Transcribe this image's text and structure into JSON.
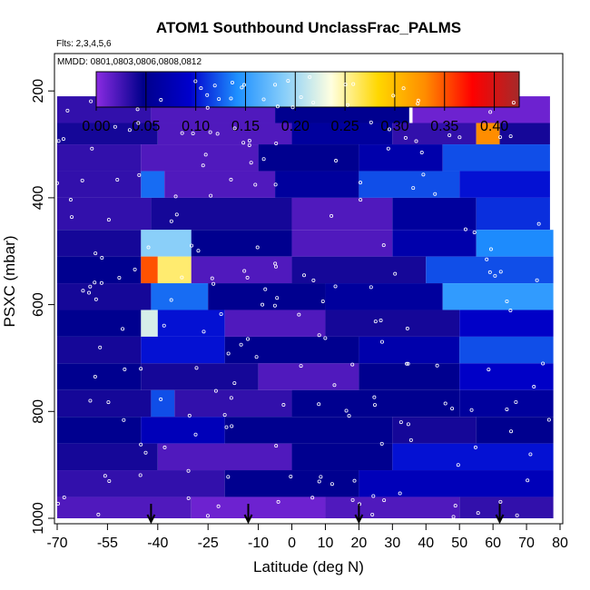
{
  "chart_data": {
    "type": "heatmap",
    "title": "ATOM1 Southbound UnclassFrac_PALMS",
    "subtitle": "Flts: 2,3,4,5,6",
    "annotation": "MMDD: 0801,0803,0806,0808,0812",
    "xlabel": "Latitude (deg N)",
    "ylabel": "PSXC (mbar)",
    "xlim": [
      -70,
      80
    ],
    "ylim": [
      1000,
      130
    ],
    "x_ticks": [
      -70,
      -55,
      -40,
      -25,
      -10,
      0,
      10,
      20,
      30,
      40,
      50,
      60,
      70,
      80
    ],
    "x_tick_labels": [
      "-70",
      "-55",
      "-40",
      "-25",
      "-10",
      "0",
      "10",
      "20",
      "30",
      "40",
      "50",
      "60",
      "70",
      "80"
    ],
    "y_ticks": [
      200,
      400,
      600,
      800,
      1000
    ],
    "y_tick_labels": [
      "200",
      "400",
      "600",
      "800",
      "1000"
    ],
    "colorbar": {
      "range": [
        0.0,
        0.425
      ],
      "ticks": [
        0.0,
        0.05,
        0.1,
        0.15,
        0.2,
        0.25,
        0.3,
        0.35,
        0.4
      ],
      "tick_labels": [
        "0.00",
        "0.05",
        "0.10",
        "0.15",
        "0.20",
        "0.25",
        "0.30",
        "0.35",
        "0.40"
      ],
      "colors": [
        "#8a2be2",
        "#00008b",
        "#0000cd",
        "#1e90ff",
        "#87cefa",
        "#ffffe0",
        "#ffd700",
        "#ff8c00",
        "#ff0000",
        "#a52a2a"
      ]
    },
    "arrow_latitudes": [
      -42,
      -13,
      20,
      62
    ],
    "pressure_bands": [
      {
        "p_top": 170,
        "p_bot": 210,
        "segments": [
          [
            -43,
            35,
            0.05
          ]
        ]
      },
      {
        "p_top": 210,
        "p_bot": 260,
        "segments": [
          [
            -70,
            -42,
            0.03
          ],
          [
            -42,
            -5,
            0.02
          ],
          [
            -5,
            35,
            0.05
          ],
          [
            36,
            77,
            0.01
          ]
        ]
      },
      {
        "p_top": 260,
        "p_bot": 300,
        "segments": [
          [
            -70,
            -40,
            0.04
          ],
          [
            -40,
            0,
            0.02
          ],
          [
            0,
            30,
            0.06
          ],
          [
            30,
            55,
            0.03
          ],
          [
            55,
            62,
            0.33
          ],
          [
            62,
            77,
            0.04
          ]
        ]
      },
      {
        "p_top": 300,
        "p_bot": 350,
        "segments": [
          [
            -70,
            -45,
            0.03
          ],
          [
            -45,
            -10,
            0.02
          ],
          [
            -10,
            20,
            0.05
          ],
          [
            20,
            45,
            0.07
          ],
          [
            45,
            77,
            0.12
          ]
        ]
      },
      {
        "p_top": 350,
        "p_bot": 400,
        "segments": [
          [
            -70,
            -45,
            0.03
          ],
          [
            -45,
            -38,
            0.13
          ],
          [
            -38,
            -5,
            0.02
          ],
          [
            -5,
            20,
            0.06
          ],
          [
            20,
            50,
            0.12
          ],
          [
            50,
            77,
            0.1
          ]
        ]
      },
      {
        "p_top": 400,
        "p_bot": 460,
        "segments": [
          [
            -70,
            -42,
            0.03
          ],
          [
            -42,
            0,
            0.04
          ],
          [
            0,
            30,
            0.02
          ],
          [
            30,
            55,
            0.06
          ],
          [
            55,
            77,
            0.11
          ]
        ]
      },
      {
        "p_top": 460,
        "p_bot": 510,
        "segments": [
          [
            -70,
            -45,
            0.04
          ],
          [
            -45,
            -30,
            0.19
          ],
          [
            -30,
            0,
            0.05
          ],
          [
            0,
            30,
            0.02
          ],
          [
            30,
            55,
            0.07
          ],
          [
            55,
            78,
            0.14
          ]
        ]
      },
      {
        "p_top": 510,
        "p_bot": 560,
        "segments": [
          [
            -70,
            -45,
            0.05
          ],
          [
            -45,
            -40,
            0.35
          ],
          [
            -40,
            -30,
            0.26
          ],
          [
            -30,
            0,
            0.02
          ],
          [
            0,
            40,
            0.04
          ],
          [
            40,
            78,
            0.12
          ]
        ]
      },
      {
        "p_top": 560,
        "p_bot": 610,
        "segments": [
          [
            -70,
            -42,
            0.04
          ],
          [
            -42,
            -25,
            0.13
          ],
          [
            -25,
            10,
            0.05
          ],
          [
            10,
            45,
            0.06
          ],
          [
            45,
            78,
            0.15
          ]
        ]
      },
      {
        "p_top": 610,
        "p_bot": 660,
        "segments": [
          [
            -70,
            -45,
            0.05
          ],
          [
            -45,
            -40,
            0.22
          ],
          [
            -40,
            -20,
            0.1
          ],
          [
            -20,
            10,
            0.02
          ],
          [
            10,
            50,
            0.04
          ],
          [
            50,
            78,
            0.09
          ]
        ]
      },
      {
        "p_top": 660,
        "p_bot": 710,
        "segments": [
          [
            -70,
            -45,
            0.04
          ],
          [
            -45,
            -20,
            0.1
          ],
          [
            -20,
            20,
            0.05
          ],
          [
            20,
            50,
            0.07
          ],
          [
            50,
            78,
            0.12
          ]
        ]
      },
      {
        "p_top": 710,
        "p_bot": 760,
        "segments": [
          [
            -70,
            -45,
            0.05
          ],
          [
            -45,
            -10,
            0.04
          ],
          [
            -10,
            20,
            0.02
          ],
          [
            20,
            50,
            0.05
          ],
          [
            50,
            78,
            0.09
          ]
        ]
      },
      {
        "p_top": 760,
        "p_bot": 810,
        "segments": [
          [
            -70,
            -42,
            0.04
          ],
          [
            -42,
            -35,
            0.12
          ],
          [
            -35,
            0,
            0.03
          ],
          [
            0,
            50,
            0.05
          ],
          [
            50,
            78,
            0.06
          ]
        ]
      },
      {
        "p_top": 810,
        "p_bot": 860,
        "segments": [
          [
            -70,
            -45,
            0.05
          ],
          [
            -45,
            -20,
            0.08
          ],
          [
            -20,
            30,
            0.05
          ],
          [
            30,
            55,
            0.04
          ],
          [
            55,
            78,
            0.05
          ]
        ]
      },
      {
        "p_top": 860,
        "p_bot": 910,
        "segments": [
          [
            -70,
            -40,
            0.04
          ],
          [
            -40,
            0,
            0.02
          ],
          [
            0,
            30,
            0.05
          ],
          [
            30,
            78,
            0.1
          ]
        ]
      },
      {
        "p_top": 910,
        "p_bot": 960,
        "segments": [
          [
            -70,
            -20,
            0.03
          ],
          [
            -20,
            20,
            0.05
          ],
          [
            20,
            78,
            0.08
          ]
        ]
      },
      {
        "p_top": 960,
        "p_bot": 1000,
        "segments": [
          [
            -70,
            -30,
            0.02
          ],
          [
            -30,
            10,
            0.01
          ],
          [
            10,
            50,
            0.02
          ],
          [
            50,
            78,
            0.03
          ]
        ]
      }
    ]
  }
}
